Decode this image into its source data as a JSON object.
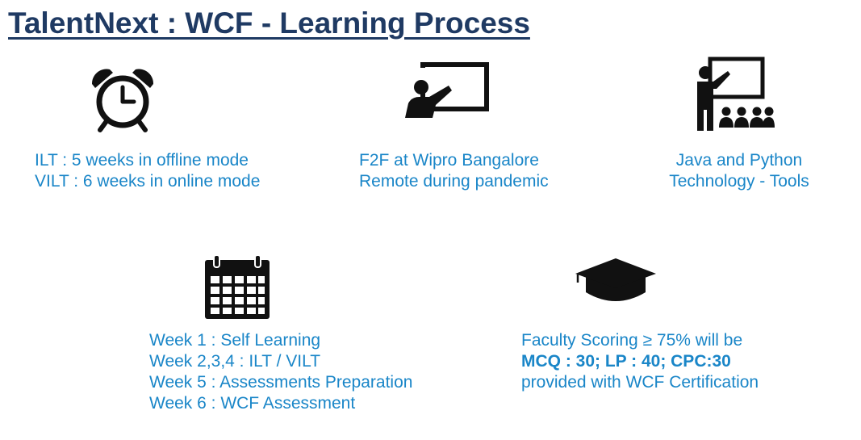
{
  "title": "TalentNext : WCF - Learning Process",
  "colors": {
    "title": "#1f3a63",
    "text": "#1a86c8",
    "icon": "#111111"
  },
  "blocks": {
    "duration": {
      "icon": "alarm-clock-icon",
      "lines": [
        "ILT : 5 weeks in offline mode",
        "VILT : 6 weeks in online mode"
      ]
    },
    "location": {
      "icon": "presenter-screen-icon",
      "lines": [
        "F2F at Wipro Bangalore",
        "Remote during pandemic"
      ]
    },
    "technology": {
      "icon": "classroom-teacher-icon",
      "lines": [
        "Java and Python",
        "Technology - Tools"
      ]
    },
    "schedule": {
      "icon": "calendar-icon",
      "lines": [
        "Week 1 : Self Learning",
        "Week 2,3,4 : ILT / VILT",
        "Week 5 : Assessments Preparation",
        "Week 6 : WCF Assessment"
      ]
    },
    "certification": {
      "icon": "graduation-cap-icon",
      "lines": [
        "Faculty Scoring ≥ 75% will be",
        "MCQ : 30; LP : 40; CPC:30",
        "provided with WCF Certification"
      ]
    }
  }
}
